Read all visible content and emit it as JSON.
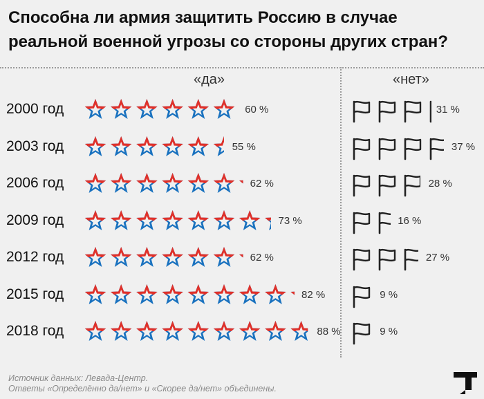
{
  "title": "Способна ли армия защитить Россию в случае реальной военной угрозы со стороны других стран?",
  "columns": {
    "yes": "«да»",
    "no": "«нет»"
  },
  "footer": {
    "line1": "Источник данных: Левада-Центр.",
    "line2": "Ответы «Определённо да/нет» и «Скорее да/нет» объединены."
  },
  "colors": {
    "star_red": "#e0312a",
    "star_blue": "#1a72bf",
    "flag_stroke": "#222222",
    "background": "#f0f0f0"
  },
  "chart_data": {
    "type": "bar",
    "title": "Способна ли армия защитить Россию в случае реальной военной угрозы со стороны других стран?",
    "categories": [
      "2000 год",
      "2003 год",
      "2006 год",
      "2009 год",
      "2012 год",
      "2015 год",
      "2018 год"
    ],
    "series": [
      {
        "name": "«да»",
        "icon": "star-icon",
        "values": [
          60,
          55,
          62,
          73,
          62,
          82,
          88
        ],
        "labels": [
          "60 %",
          "55 %",
          "62 %",
          "73 %",
          "62 %",
          "82 %",
          "88 %"
        ]
      },
      {
        "name": "«нет»",
        "icon": "flag-icon",
        "values": [
          31,
          37,
          28,
          16,
          27,
          9,
          9
        ],
        "labels": [
          "31 %",
          "37 %",
          "28 %",
          "16 %",
          "27 %",
          "9 %",
          "9 %"
        ]
      }
    ],
    "unit_per_icon": 10,
    "xlabel": "",
    "ylabel": ""
  }
}
